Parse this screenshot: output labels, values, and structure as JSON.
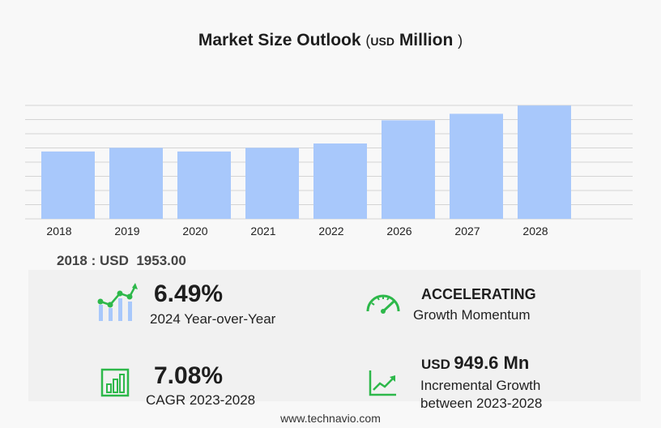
{
  "title": {
    "main": "Market Size Outlook",
    "paren_open": "(",
    "unit": "USD",
    "scale": "Million",
    "paren_close": ")"
  },
  "chart_data": {
    "type": "bar",
    "categories": [
      "2018",
      "2019",
      "2020",
      "2021",
      "2022",
      "2026",
      "2027",
      "2028"
    ],
    "values": [
      1953.0,
      2059.0,
      1953.0,
      2059.0,
      2185.0,
      2857.0,
      3046.0,
      3286.0
    ],
    "ylim": [
      0,
      3290
    ],
    "grid": true,
    "bar_color": "#a8c8fb",
    "grid_color": "#d4d4d4"
  },
  "base_year": {
    "year": "2018",
    "sep": ":",
    "currency": "USD",
    "value": "1953.00"
  },
  "kpis": {
    "yoy": {
      "value": "6.49%",
      "label": "2024 Year-over-Year",
      "icon": "growth-chart-icon"
    },
    "momentum": {
      "value": "ACCELERATING",
      "label": "Growth Momentum",
      "icon": "speedometer-icon"
    },
    "cagr": {
      "value": "7.08%",
      "label": "CAGR 2023-2028",
      "icon": "bar-chart-icon"
    },
    "incremental": {
      "currency": "USD",
      "value": "949.6 Mn",
      "label_line1": "Incremental Growth",
      "label_line2": "between 2023-2028",
      "icon": "trend-line-icon"
    }
  },
  "colors": {
    "accent": "#2db84a",
    "bar": "#a8c8fb"
  },
  "footer": "www.technavio.com"
}
